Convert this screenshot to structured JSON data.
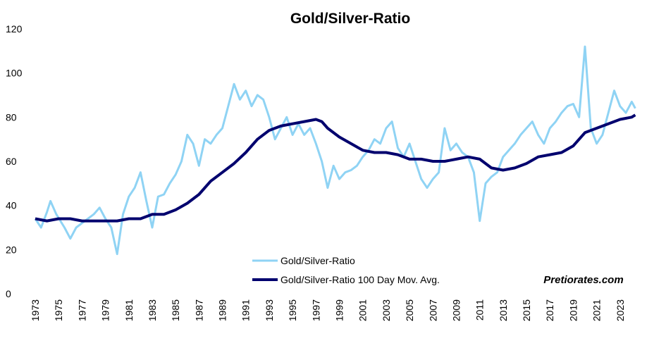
{
  "chart_data": {
    "type": "line",
    "title": "Gold/Silver-Ratio",
    "watermark": "Pretiorates.com",
    "xlim": [
      1973,
      2025
    ],
    "xticks": [
      1973,
      1975,
      1977,
      1979,
      1981,
      1983,
      1985,
      1987,
      1989,
      1991,
      1993,
      1995,
      1997,
      1999,
      2001,
      2003,
      2005,
      2007,
      2009,
      2011,
      2013,
      2015,
      2017,
      2019,
      2021,
      2023
    ],
    "ylim": [
      0,
      120
    ],
    "yticks": [
      0,
      20,
      40,
      60,
      80,
      100,
      120
    ],
    "grid": false,
    "series": [
      {
        "name": "Gold/Silver-Ratio",
        "color": "#8fd3f4",
        "x": [
          1973,
          1973.5,
          1974,
          1974.3,
          1974.8,
          1975.5,
          1976,
          1976.5,
          1977,
          1977.5,
          1978,
          1978.5,
          1979,
          1979.5,
          1980,
          1980.5,
          1981,
          1981.5,
          1982,
          1982.5,
          1983,
          1983.5,
          1984,
          1984.5,
          1985,
          1985.5,
          1986,
          1986.5,
          1987,
          1987.5,
          1988,
          1988.5,
          1989,
          1989.5,
          1990,
          1990.5,
          1991,
          1991.5,
          1992,
          1992.5,
          1993,
          1993.5,
          1994,
          1994.5,
          1995,
          1995.5,
          1996,
          1996.5,
          1997,
          1997.5,
          1998,
          1998.5,
          1999,
          1999.5,
          2000,
          2000.5,
          2001,
          2001.5,
          2002,
          2002.5,
          2003,
          2003.5,
          2004,
          2004.5,
          2005,
          2005.5,
          2006,
          2006.5,
          2007,
          2007.5,
          2008,
          2008.5,
          2009,
          2009.5,
          2010,
          2010.5,
          2011,
          2011.5,
          2012,
          2012.5,
          2013,
          2013.5,
          2014,
          2014.5,
          2015,
          2015.5,
          2016,
          2016.5,
          2017,
          2017.5,
          2018,
          2018.5,
          2019,
          2019.5,
          2020,
          2020.5,
          2021,
          2021.5,
          2022,
          2022.5,
          2023,
          2023.5,
          2024,
          2024.3
        ],
        "values": [
          34,
          30,
          37,
          42,
          36,
          30,
          25,
          30,
          32,
          34,
          36,
          39,
          34,
          30,
          18,
          36,
          44,
          48,
          55,
          42,
          30,
          44,
          45,
          50,
          54,
          60,
          72,
          68,
          58,
          70,
          68,
          72,
          75,
          85,
          95,
          88,
          92,
          85,
          90,
          88,
          80,
          70,
          75,
          80,
          72,
          77,
          72,
          75,
          68,
          60,
          48,
          58,
          52,
          55,
          56,
          58,
          62,
          65,
          70,
          68,
          75,
          78,
          66,
          62,
          68,
          60,
          52,
          48,
          52,
          55,
          75,
          65,
          68,
          64,
          62,
          55,
          33,
          50,
          53,
          55,
          62,
          65,
          68,
          72,
          75,
          78,
          72,
          68,
          75,
          78,
          82,
          85,
          86,
          80,
          112,
          75,
          68,
          72,
          82,
          92,
          85,
          82,
          87,
          84
        ]
      },
      {
        "name": "Gold/Silver-Ratio 100 Day Mov. Avg.",
        "color": "#00006e",
        "x": [
          1973,
          1974,
          1975,
          1976,
          1977,
          1978,
          1979,
          1980,
          1981,
          1982,
          1983,
          1984,
          1985,
          1986,
          1987,
          1988,
          1989,
          1990,
          1991,
          1992,
          1993,
          1994,
          1995,
          1996,
          1997,
          1997.5,
          1998,
          1999,
          2000,
          2001,
          2002,
          2003,
          2004,
          2005,
          2006,
          2007,
          2008,
          2009,
          2010,
          2011,
          2012,
          2013,
          2014,
          2015,
          2016,
          2017,
          2018,
          2019,
          2020,
          2021,
          2022,
          2023,
          2024,
          2024.3
        ],
        "values": [
          34,
          33,
          34,
          34,
          33,
          33,
          33,
          33,
          34,
          34,
          36,
          36,
          38,
          41,
          45,
          51,
          55,
          59,
          64,
          70,
          74,
          76,
          77,
          78,
          79,
          78,
          75,
          71,
          68,
          65,
          64,
          64,
          63,
          61,
          61,
          60,
          60,
          61,
          62,
          61,
          57,
          56,
          57,
          59,
          62,
          63,
          64,
          67,
          73,
          75,
          77,
          79,
          80,
          81
        ]
      }
    ]
  }
}
